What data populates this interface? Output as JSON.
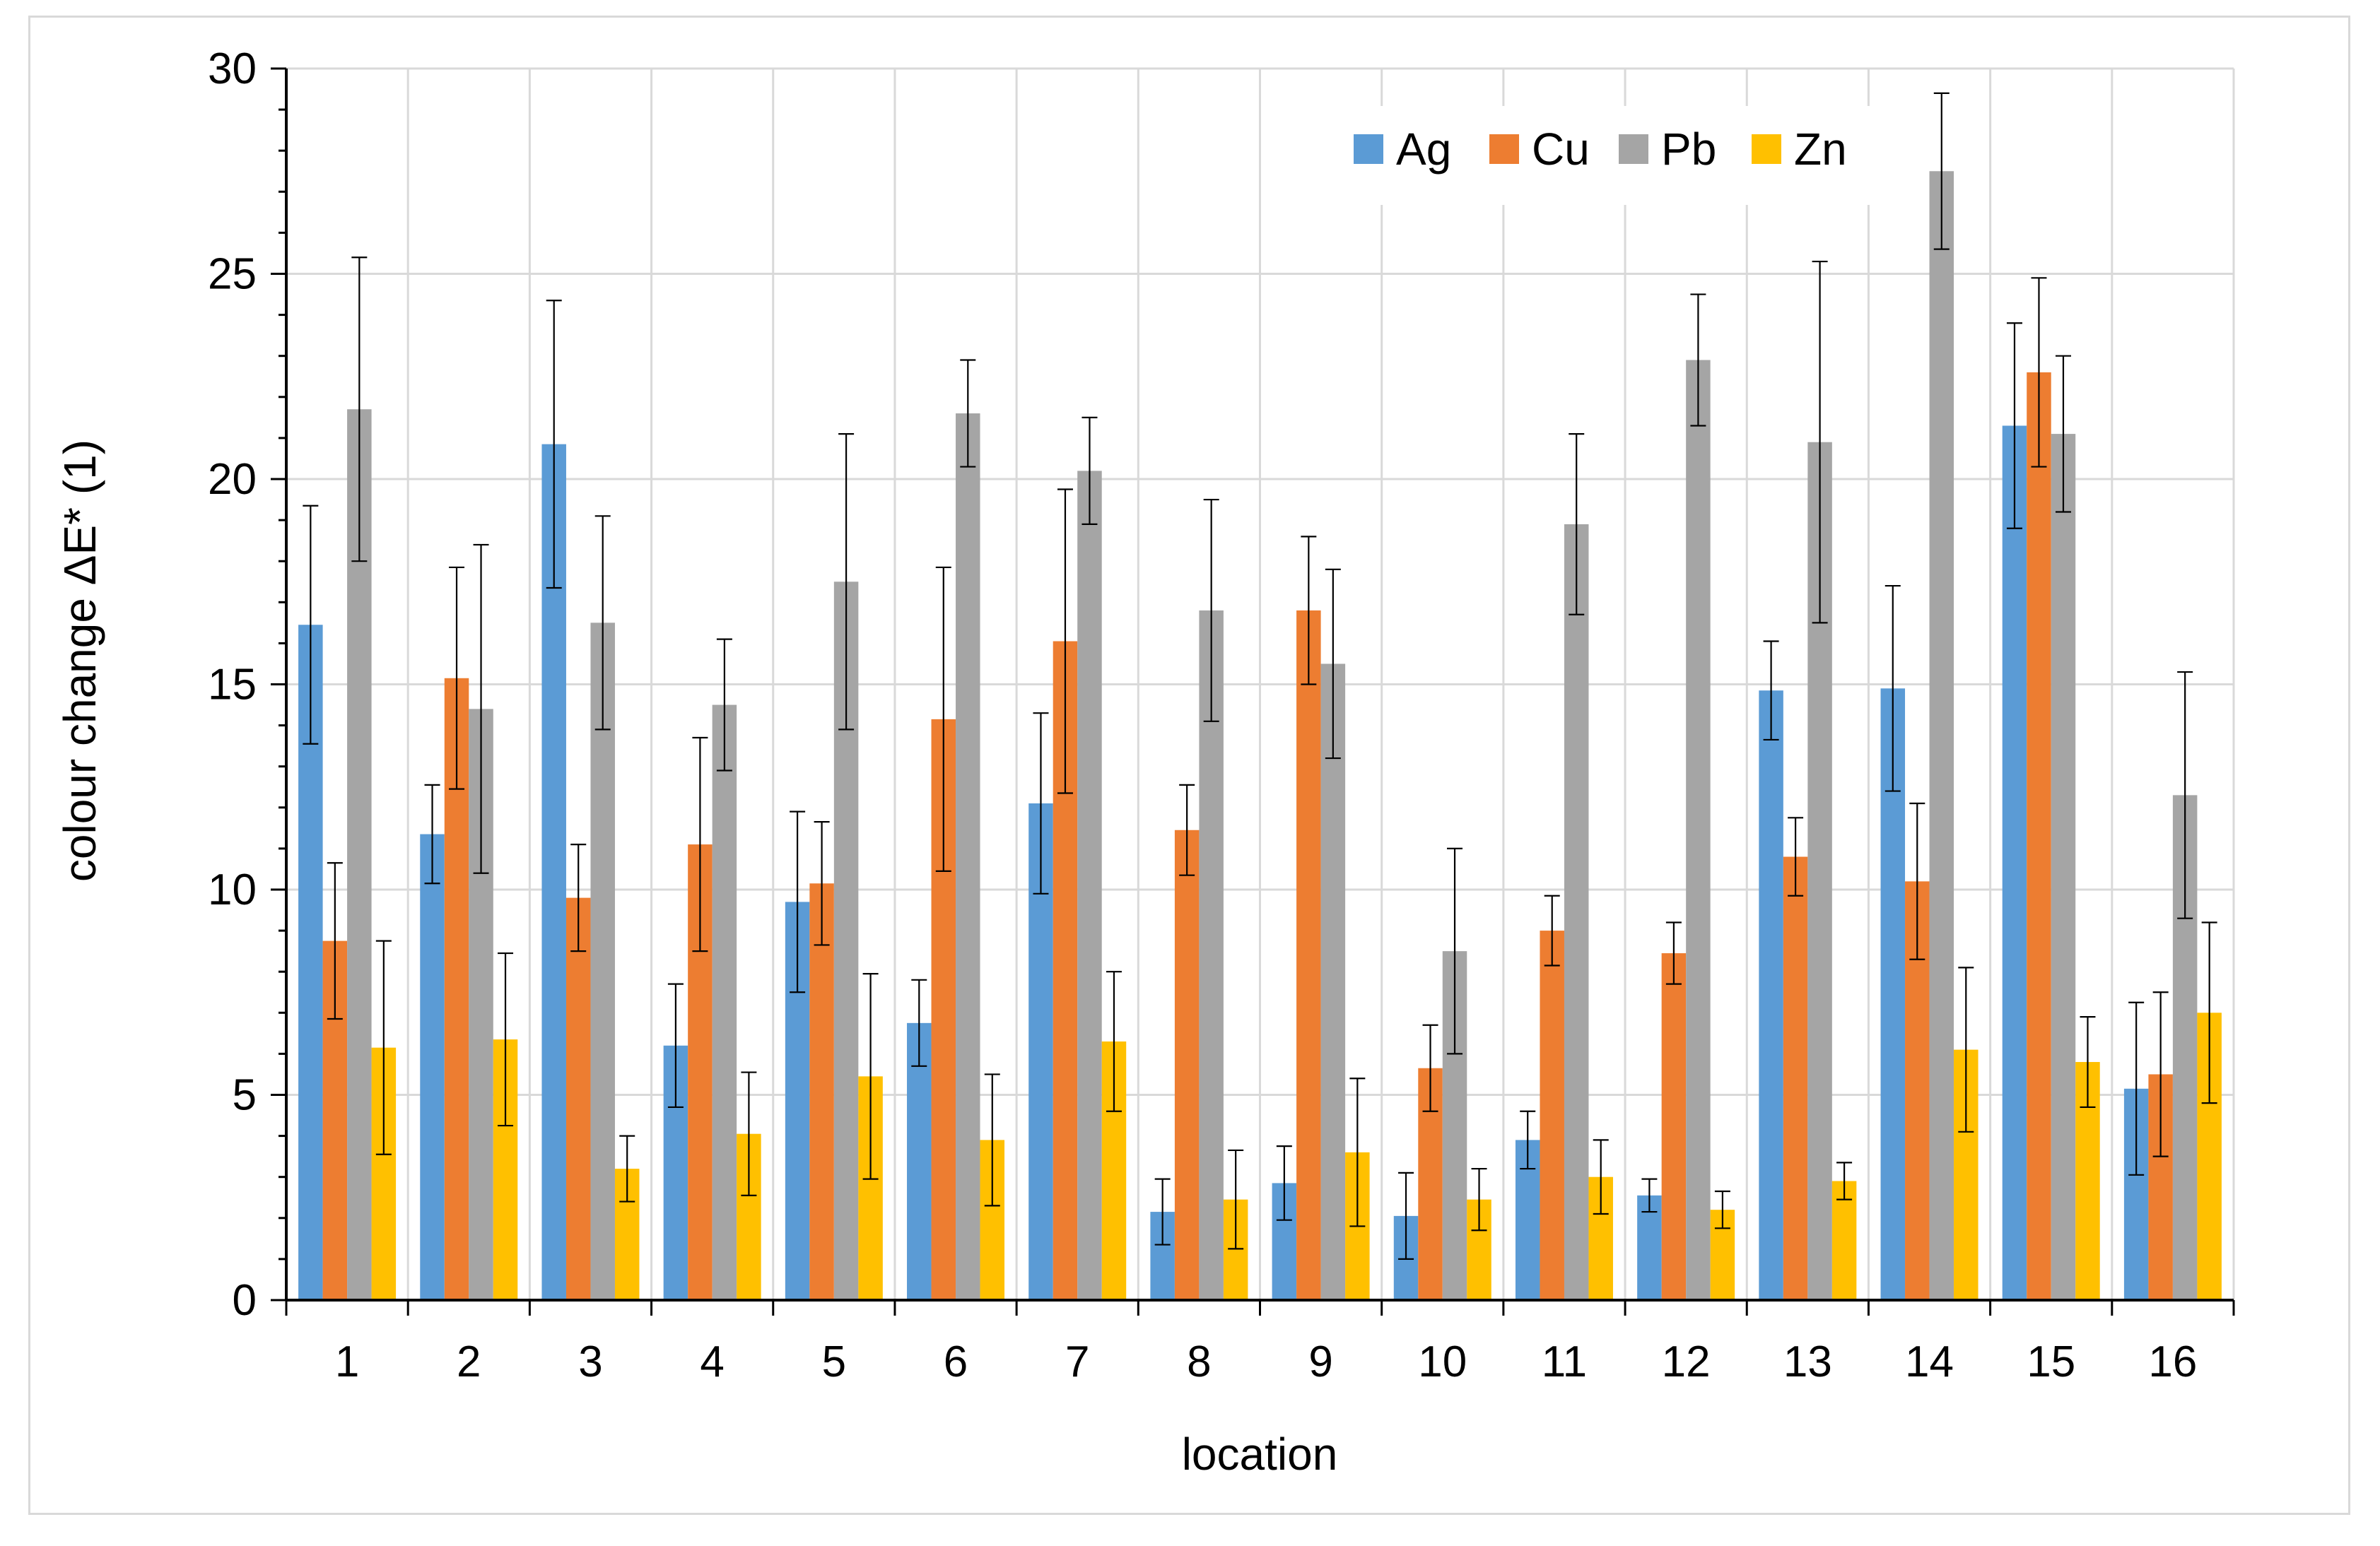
{
  "chart_data": {
    "type": "bar",
    "title": "",
    "xlabel": "location",
    "ylabel": "colour change ΔE* (1)",
    "ylim": [
      0,
      30
    ],
    "yticks": [
      0,
      5,
      10,
      15,
      20,
      25,
      30
    ],
    "grid": true,
    "legend_position": "top-right",
    "categories": [
      "1",
      "2",
      "3",
      "4",
      "5",
      "6",
      "7",
      "8",
      "9",
      "10",
      "11",
      "12",
      "13",
      "14",
      "15",
      "16"
    ],
    "series": [
      {
        "name": "Ag",
        "color": "#5b9bd5",
        "values": [
          16.45,
          11.35,
          20.85,
          6.2,
          9.7,
          6.75,
          12.1,
          2.15,
          2.85,
          2.05,
          3.9,
          2.55,
          14.85,
          14.9,
          21.3,
          5.15
        ],
        "errors": [
          2.9,
          1.2,
          3.5,
          1.5,
          2.2,
          1.05,
          2.2,
          0.8,
          0.9,
          1.05,
          0.7,
          0.4,
          1.2,
          2.5,
          2.5,
          2.1
        ]
      },
      {
        "name": "Cu",
        "color": "#ed7d31",
        "values": [
          8.75,
          15.15,
          9.8,
          11.1,
          10.15,
          14.15,
          16.05,
          11.45,
          16.8,
          5.65,
          9.0,
          8.45,
          10.8,
          10.2,
          22.6,
          5.5
        ],
        "errors": [
          1.9,
          2.7,
          1.3,
          2.6,
          1.5,
          3.7,
          3.7,
          1.1,
          1.8,
          1.05,
          0.85,
          0.75,
          0.95,
          1.9,
          2.3,
          2.0
        ]
      },
      {
        "name": "Pb",
        "color": "#a5a5a5",
        "values": [
          21.7,
          14.4,
          16.5,
          14.5,
          17.5,
          21.6,
          20.2,
          16.8,
          15.5,
          8.5,
          18.9,
          22.9,
          20.9,
          27.5,
          21.1,
          12.3
        ],
        "errors": [
          3.7,
          4.0,
          2.6,
          1.6,
          3.6,
          1.3,
          1.3,
          2.7,
          2.3,
          2.5,
          2.2,
          1.6,
          4.4,
          1.9,
          1.9,
          3.0
        ]
      },
      {
        "name": "Zn",
        "color": "#ffc000",
        "values": [
          6.15,
          6.35,
          3.2,
          4.05,
          5.45,
          3.9,
          6.3,
          2.45,
          3.6,
          2.45,
          3.0,
          2.2,
          2.9,
          6.1,
          5.8,
          7.0
        ],
        "errors": [
          2.6,
          2.1,
          0.8,
          1.5,
          2.5,
          1.6,
          1.7,
          1.2,
          1.8,
          0.75,
          0.9,
          0.45,
          0.45,
          2.0,
          1.1,
          2.2
        ]
      }
    ]
  }
}
